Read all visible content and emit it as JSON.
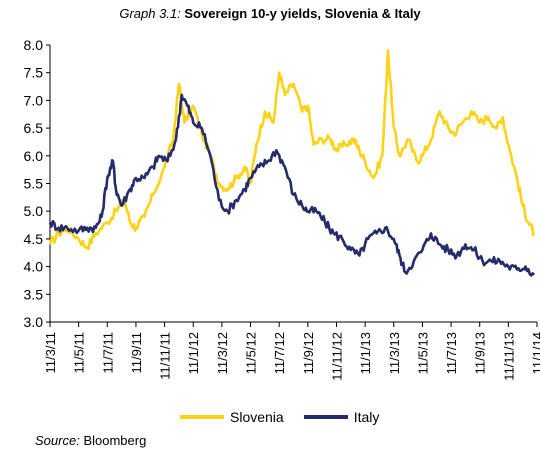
{
  "title": {
    "prefix": "Graph 3.1:",
    "main": "Sovereign 10-y yields, Slovenia & Italy"
  },
  "source": {
    "label": "Source:",
    "value": "Bloomberg"
  },
  "chart_data": {
    "type": "line",
    "title": "Sovereign 10-y yields, Slovenia & Italy",
    "xlabel": "",
    "ylabel": "",
    "ylim": [
      3.0,
      8.0
    ],
    "y_ticks": [
      "3.0",
      "3.5",
      "4.0",
      "4.5",
      "5.0",
      "5.5",
      "6.0",
      "6.5",
      "7.0",
      "7.5",
      "8.0"
    ],
    "x_ticks": [
      "11/3/11",
      "11/5/11",
      "11/7/11",
      "11/9/11",
      "11/11/11",
      "11/1/12",
      "11/3/12",
      "11/5/12",
      "11/7/12",
      "11/9/12",
      "11/11/12",
      "11/1/13",
      "11/3/13",
      "11/5/13",
      "11/7/13",
      "11/9/13",
      "11/11/13",
      "11/1/14"
    ],
    "grid": false,
    "legend": "bottom",
    "series": [
      {
        "name": "Slovenia",
        "color": "#FFD21A",
        "points": [
          [
            0,
            4.4
          ],
          [
            0.3,
            4.6
          ],
          [
            0.6,
            4.7
          ],
          [
            1.0,
            4.5
          ],
          [
            1.3,
            4.35
          ],
          [
            1.6,
            4.6
          ],
          [
            2.0,
            4.8
          ],
          [
            2.3,
            5.0
          ],
          [
            2.6,
            5.2
          ],
          [
            2.8,
            4.8
          ],
          [
            3.0,
            4.7
          ],
          [
            3.3,
            4.9
          ],
          [
            3.6,
            5.3
          ],
          [
            4.0,
            5.8
          ],
          [
            4.3,
            6.3
          ],
          [
            4.5,
            7.3
          ],
          [
            4.7,
            6.6
          ],
          [
            5.0,
            6.9
          ],
          [
            5.3,
            6.4
          ],
          [
            5.6,
            6.0
          ],
          [
            5.9,
            5.5
          ],
          [
            6.2,
            5.4
          ],
          [
            6.5,
            5.6
          ],
          [
            6.8,
            5.8
          ],
          [
            7.0,
            5.5
          ],
          [
            7.2,
            6.2
          ],
          [
            7.5,
            6.8
          ],
          [
            7.8,
            6.6
          ],
          [
            8.0,
            7.5
          ],
          [
            8.2,
            7.1
          ],
          [
            8.5,
            7.3
          ],
          [
            8.8,
            6.8
          ],
          [
            9.0,
            6.9
          ],
          [
            9.2,
            6.2
          ],
          [
            9.5,
            6.3
          ],
          [
            9.8,
            6.3
          ],
          [
            10.0,
            6.1
          ],
          [
            10.3,
            6.2
          ],
          [
            10.6,
            6.3
          ],
          [
            10.8,
            6.1
          ],
          [
            11.0,
            5.9
          ],
          [
            11.3,
            5.6
          ],
          [
            11.6,
            6.0
          ],
          [
            11.8,
            7.9
          ],
          [
            12.0,
            6.5
          ],
          [
            12.2,
            6.0
          ],
          [
            12.5,
            6.3
          ],
          [
            12.8,
            5.9
          ],
          [
            13.0,
            6.0
          ],
          [
            13.3,
            6.3
          ],
          [
            13.6,
            6.8
          ],
          [
            13.9,
            6.5
          ],
          [
            14.1,
            6.4
          ],
          [
            14.4,
            6.6
          ],
          [
            14.7,
            6.8
          ],
          [
            15.0,
            6.6
          ],
          [
            15.3,
            6.7
          ],
          [
            15.6,
            6.5
          ],
          [
            15.8,
            6.7
          ],
          [
            16.0,
            6.2
          ],
          [
            16.3,
            5.6
          ],
          [
            16.5,
            5.1
          ],
          [
            16.7,
            4.8
          ],
          [
            16.9,
            4.6
          ]
        ]
      },
      {
        "name": "Italy",
        "color": "#262B6B",
        "points": [
          [
            0,
            4.8
          ],
          [
            0.3,
            4.7
          ],
          [
            0.6,
            4.7
          ],
          [
            1.0,
            4.65
          ],
          [
            1.3,
            4.7
          ],
          [
            1.6,
            4.7
          ],
          [
            1.8,
            4.9
          ],
          [
            2.0,
            5.6
          ],
          [
            2.2,
            5.9
          ],
          [
            2.3,
            5.4
          ],
          [
            2.5,
            5.1
          ],
          [
            2.8,
            5.4
          ],
          [
            3.0,
            5.6
          ],
          [
            3.3,
            5.6
          ],
          [
            3.6,
            5.8
          ],
          [
            3.8,
            6.0
          ],
          [
            4.1,
            5.9
          ],
          [
            4.4,
            6.3
          ],
          [
            4.6,
            7.1
          ],
          [
            4.8,
            6.9
          ],
          [
            5.0,
            6.6
          ],
          [
            5.3,
            6.5
          ],
          [
            5.6,
            6.0
          ],
          [
            5.9,
            5.2
          ],
          [
            6.2,
            5.0
          ],
          [
            6.5,
            5.2
          ],
          [
            6.8,
            5.4
          ],
          [
            7.0,
            5.6
          ],
          [
            7.3,
            5.8
          ],
          [
            7.6,
            5.9
          ],
          [
            7.9,
            6.1
          ],
          [
            8.2,
            5.8
          ],
          [
            8.5,
            5.3
          ],
          [
            8.8,
            5.1
          ],
          [
            9.0,
            5.0
          ],
          [
            9.3,
            5.0
          ],
          [
            9.6,
            4.8
          ],
          [
            9.9,
            4.6
          ],
          [
            10.2,
            4.5
          ],
          [
            10.5,
            4.3
          ],
          [
            10.8,
            4.2
          ],
          [
            11.1,
            4.5
          ],
          [
            11.4,
            4.6
          ],
          [
            11.7,
            4.7
          ],
          [
            12.0,
            4.5
          ],
          [
            12.2,
            4.2
          ],
          [
            12.4,
            3.9
          ],
          [
            12.7,
            4.1
          ],
          [
            13.0,
            4.3
          ],
          [
            13.3,
            4.6
          ],
          [
            13.6,
            4.4
          ],
          [
            13.9,
            4.3
          ],
          [
            14.2,
            4.2
          ],
          [
            14.5,
            4.4
          ],
          [
            14.8,
            4.3
          ],
          [
            15.1,
            4.1
          ],
          [
            15.4,
            4.1
          ],
          [
            15.7,
            4.1
          ],
          [
            16.0,
            4.0
          ],
          [
            16.3,
            3.95
          ],
          [
            16.6,
            4.0
          ],
          [
            16.9,
            3.85
          ]
        ]
      }
    ]
  }
}
